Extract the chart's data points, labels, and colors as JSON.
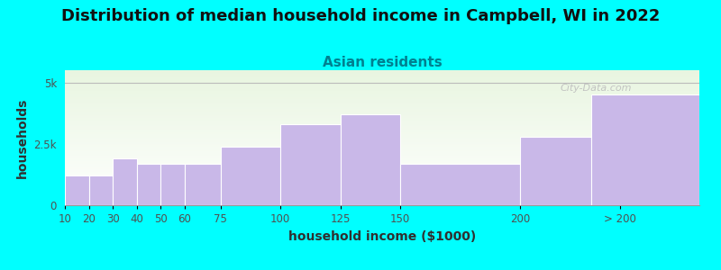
{
  "title": "Distribution of median household income in Campbell, WI in 2022",
  "subtitle": "Asian residents",
  "xlabel": "household income ($1000)",
  "ylabel": "households",
  "bar_color": "#C9B8E8",
  "bar_edge_color": "#FFFFFF",
  "background_outer": "#00FFFF",
  "background_plot_top": "#E8F5E0",
  "background_plot_bottom": "#FFFFFF",
  "bar_lefts": [
    10,
    20,
    30,
    40,
    50,
    60,
    75,
    100,
    125,
    150,
    200,
    230
  ],
  "bar_widths": [
    10,
    10,
    10,
    10,
    10,
    15,
    25,
    25,
    25,
    50,
    30,
    45
  ],
  "values": [
    1200,
    1200,
    1900,
    1700,
    1700,
    1700,
    2400,
    3300,
    3700,
    1700,
    2800,
    4500
  ],
  "xlim": [
    10,
    275
  ],
  "xtick_positions": [
    10,
    20,
    30,
    40,
    50,
    60,
    75,
    100,
    125,
    150,
    200,
    242
  ],
  "xtick_labels": [
    "10",
    "20",
    "30",
    "40",
    "50",
    "60",
    "75",
    "100",
    "125",
    "150",
    "200",
    "> 200"
  ],
  "ylim": [
    0,
    5500
  ],
  "yticks": [
    0,
    2500,
    5000
  ],
  "ytick_labels": [
    "0",
    "2.5k",
    "5k"
  ],
  "hline_y": 5000,
  "watermark": "City-Data.com",
  "title_fontsize": 13,
  "subtitle_fontsize": 11,
  "axis_label_fontsize": 10,
  "tick_fontsize": 8.5
}
